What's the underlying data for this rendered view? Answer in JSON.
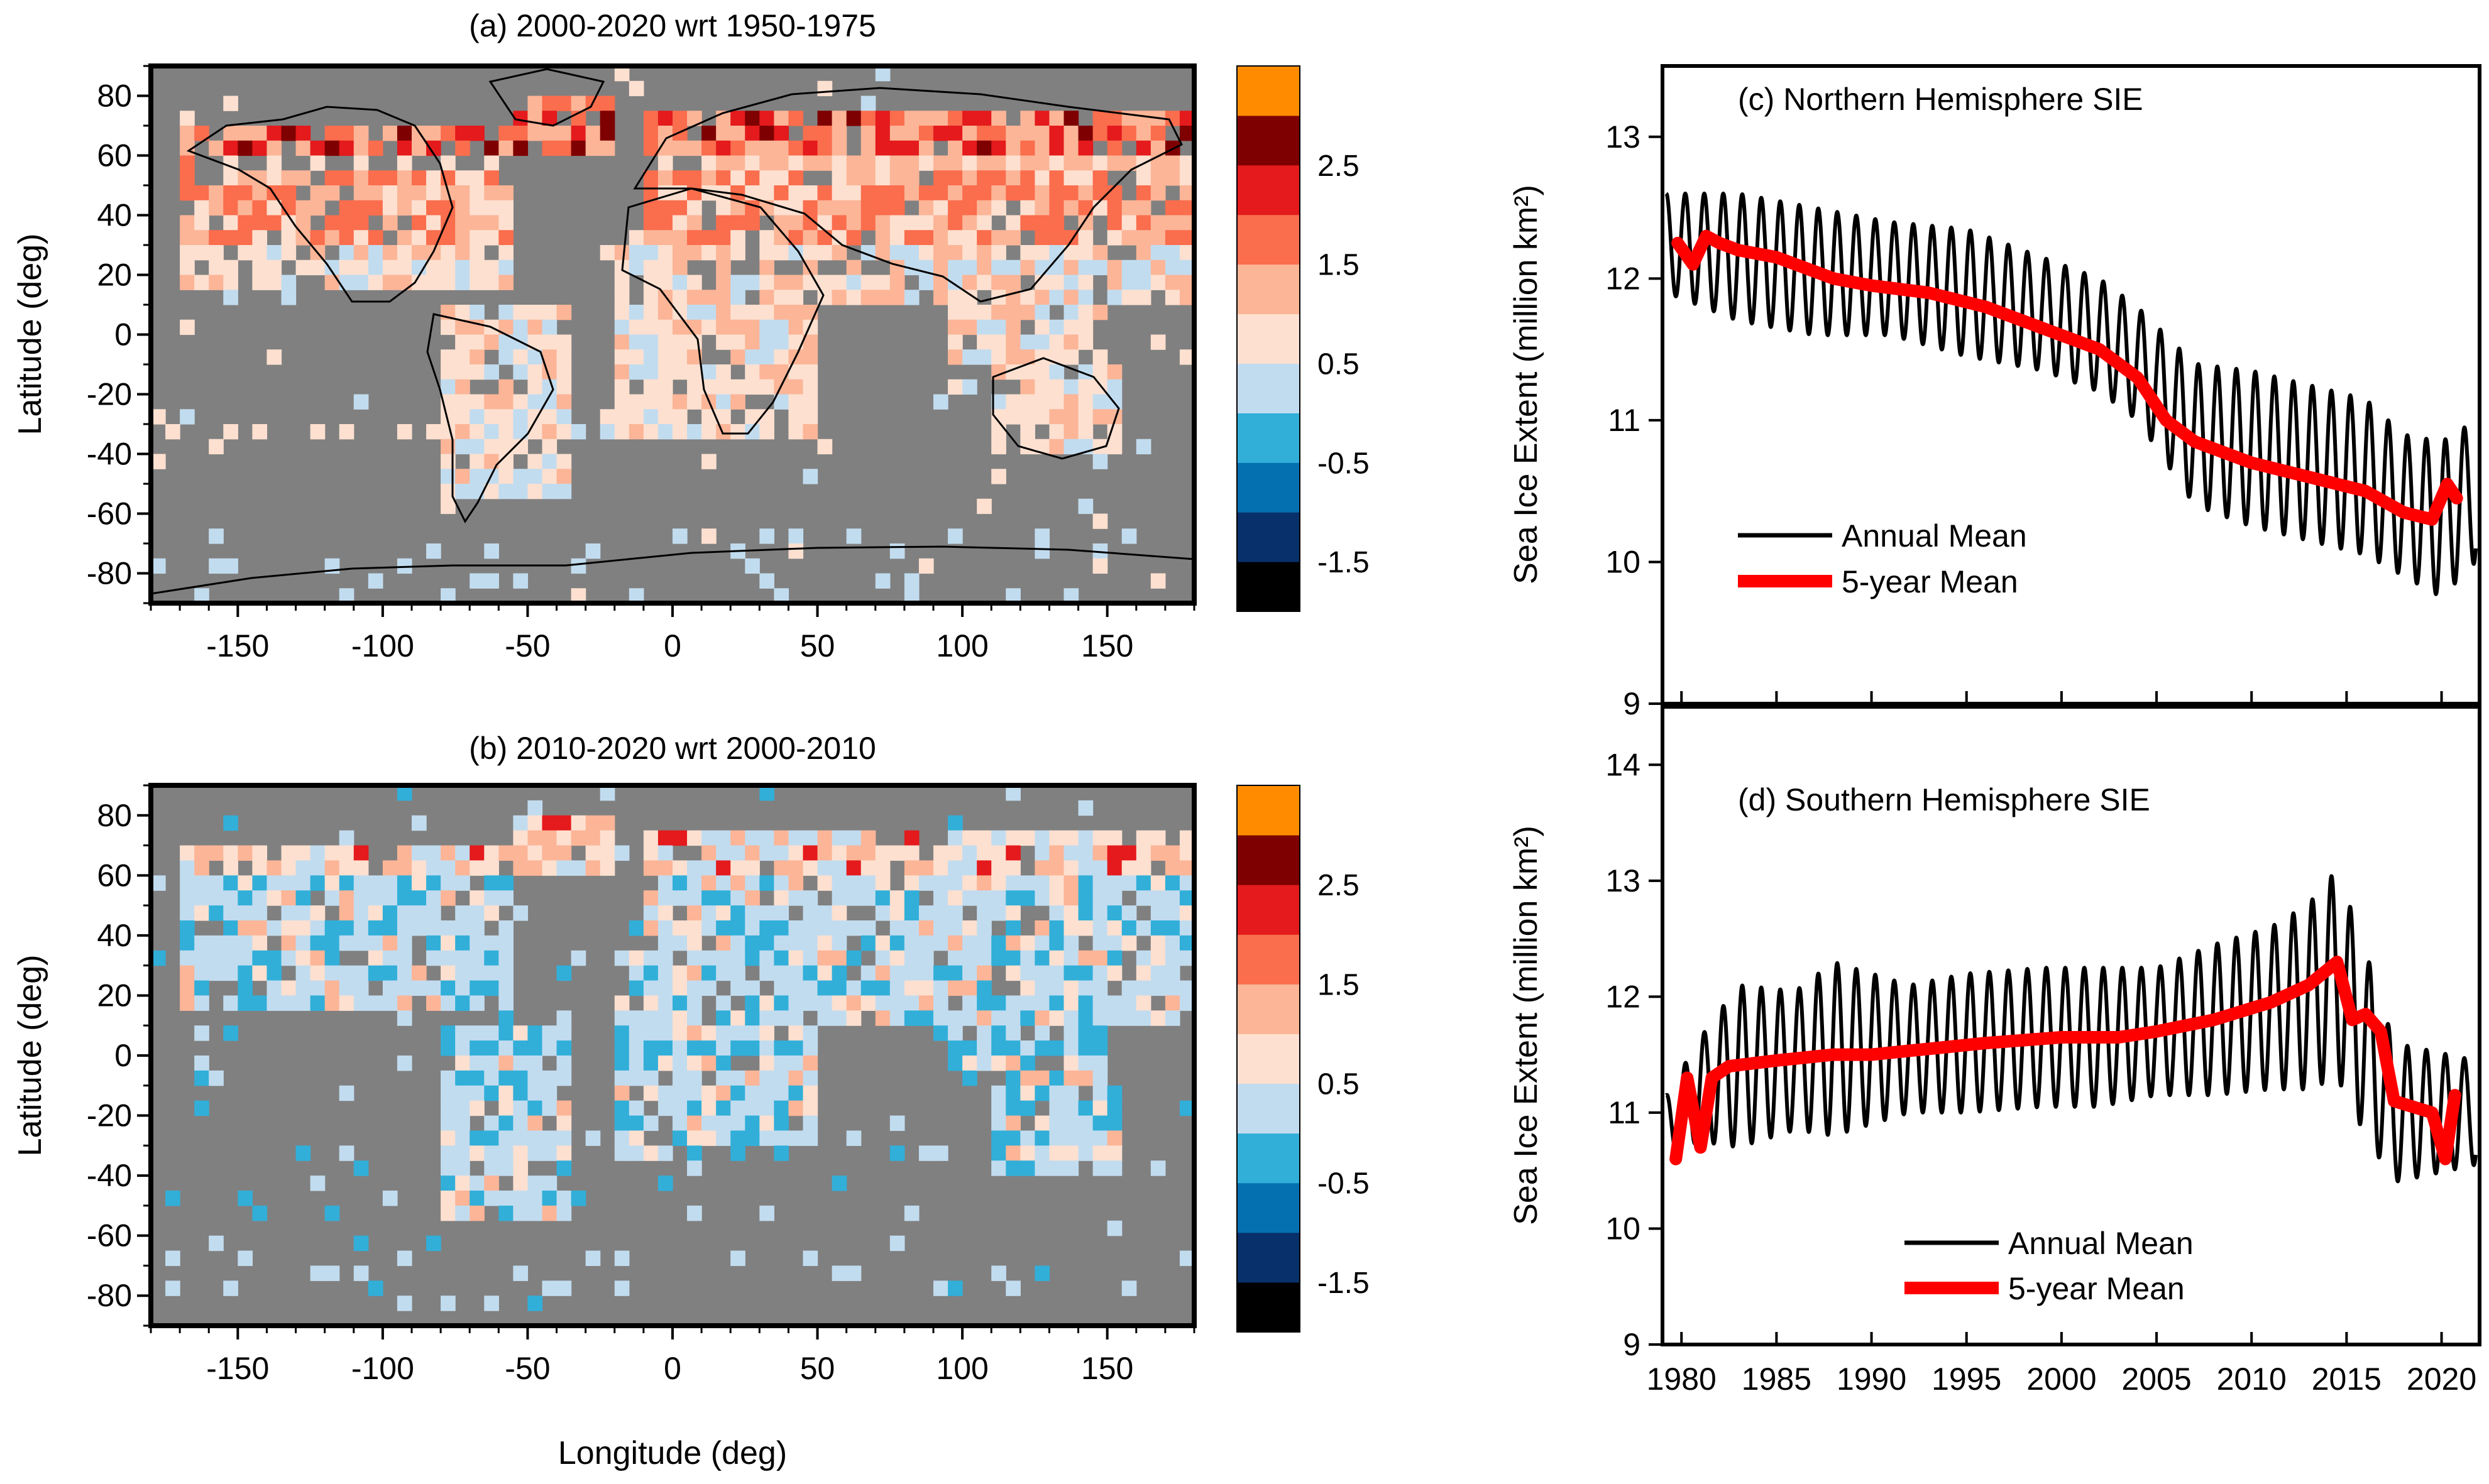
{
  "chart_data": [
    {
      "type": "heatmap",
      "panel": "a",
      "title": "(a)   2000-2020 wrt 1950-1975",
      "xlabel": "",
      "ylabel": "Latitude (deg)",
      "xlim": [
        -180,
        180
      ],
      "ylim": [
        -90,
        90
      ],
      "xticks": [
        "-150",
        "-100",
        "-50",
        "0",
        "50",
        "100",
        "150"
      ],
      "yticks": [
        "80",
        "60",
        "40",
        "20",
        "0",
        "-20",
        "-40",
        "-60",
        "-80"
      ],
      "background": "#808080",
      "colorbar": {
        "colors": [
          "#000000",
          "#08306b",
          "#0570b0",
          "#31afd9",
          "#c2dcef",
          "#fde0d0",
          "#fcb597",
          "#fa6d4d",
          "#e41a1c",
          "#7f0000",
          "#ff8c00"
        ],
        "labels": [
          "-1.5",
          "-0.5",
          "0.5",
          "1.5",
          "2.5"
        ]
      }
    },
    {
      "type": "heatmap",
      "panel": "b",
      "title": "(b)   2010-2020 wrt 2000-2010",
      "xlabel": "Longitude (deg)",
      "ylabel": "Latitude (deg)",
      "xlim": [
        -180,
        180
      ],
      "ylim": [
        -90,
        90
      ],
      "xticks": [
        "-150",
        "-100",
        "-50",
        "0",
        "50",
        "100",
        "150"
      ],
      "yticks": [
        "80",
        "60",
        "40",
        "20",
        "0",
        "-20",
        "-40",
        "-60",
        "-80"
      ],
      "background": "#808080",
      "colorbar": {
        "colors": [
          "#000000",
          "#08306b",
          "#0570b0",
          "#31afd9",
          "#c2dcef",
          "#fde0d0",
          "#fcb597",
          "#fa6d4d",
          "#e41a1c",
          "#7f0000",
          "#ff8c00"
        ],
        "labels": [
          "-1.5",
          "-0.5",
          "0.5",
          "1.5",
          "2.5"
        ]
      }
    },
    {
      "type": "line",
      "panel": "c",
      "title": "(c) Northern Hemisphere SIE",
      "xlabel": "",
      "ylabel": "Sea Ice Extent (million km²)",
      "xlim": [
        1979,
        2022
      ],
      "ylim": [
        9,
        13.5
      ],
      "yticks": [
        9,
        10,
        11,
        12,
        13
      ],
      "xticks": [
        1980,
        1985,
        1990,
        1995,
        2000,
        2005,
        2010,
        2015,
        2020
      ],
      "legend": "center-left",
      "series": [
        {
          "name": "Annual Mean",
          "color": "#000000",
          "style": "oscillating",
          "x": [
            1979.2,
            1983,
            1987,
            1991,
            1995,
            1999,
            2002,
            2004,
            2007,
            2010,
            2013,
            2016,
            2018,
            2020,
            2021.8
          ],
          "values": [
            12.25,
            12.15,
            12.05,
            12.0,
            11.9,
            11.75,
            11.6,
            11.4,
            10.9,
            10.8,
            10.7,
            10.6,
            10.4,
            10.3,
            10.5
          ],
          "amplitude": [
            0.35,
            0.45,
            0.45,
            0.4,
            0.45,
            0.4,
            0.4,
            0.4,
            0.5,
            0.55,
            0.55,
            0.55,
            0.5,
            0.55,
            0.5
          ]
        },
        {
          "name": "5-year Mean",
          "color": "#ff0000",
          "x": [
            1979.8,
            1980.6,
            1981.3,
            1982,
            1983,
            1985,
            1988,
            1990,
            1993,
            1996,
            1998,
            2000,
            2002,
            2004,
            2005.5,
            2007,
            2010,
            2013,
            2016,
            2018,
            2019.5,
            2020.3,
            2020.8
          ],
          "values": [
            12.25,
            12.1,
            12.3,
            12.25,
            12.2,
            12.15,
            12.0,
            11.95,
            11.9,
            11.8,
            11.7,
            11.6,
            11.5,
            11.3,
            11.0,
            10.85,
            10.7,
            10.6,
            10.5,
            10.35,
            10.3,
            10.55,
            10.45
          ]
        }
      ]
    },
    {
      "type": "line",
      "panel": "d",
      "title": "(d) Southern Hemisphere SIE",
      "xlabel": "",
      "ylabel": "Sea Ice Extent (million km²)",
      "xlim": [
        1979,
        2022
      ],
      "ylim": [
        9,
        14.5
      ],
      "yticks": [
        9,
        10,
        11,
        12,
        13,
        14
      ],
      "xticks": [
        1980,
        1985,
        1990,
        1995,
        2000,
        2005,
        2010,
        2015,
        2020
      ],
      "legend": "bottom-center",
      "series": [
        {
          "name": "Annual Mean",
          "color": "#000000",
          "style": "oscillating",
          "x": [
            1979.2,
            1981,
            1983,
            1986,
            1988,
            1992,
            1995,
            1999,
            2002,
            2005,
            2008,
            2011,
            2013,
            2014.5,
            2016,
            2017.5,
            2019,
            2021.8
          ],
          "values": [
            10.9,
            11.2,
            11.4,
            11.45,
            11.55,
            11.55,
            11.6,
            11.65,
            11.65,
            11.7,
            11.8,
            11.9,
            12.0,
            12.2,
            11.6,
            11.0,
            11.0,
            11.0
          ],
          "amplitude": [
            0.25,
            0.45,
            0.7,
            0.6,
            0.75,
            0.55,
            0.6,
            0.6,
            0.6,
            0.55,
            0.65,
            0.7,
            0.8,
            0.9,
            0.8,
            0.6,
            0.55,
            0.45
          ]
        },
        {
          "name": "5-year Mean",
          "color": "#ff0000",
          "x": [
            1979.7,
            1980.3,
            1981,
            1981.6,
            1982.5,
            1985,
            1988,
            1990,
            1993,
            1996,
            2000,
            2003,
            2005,
            2008,
            2011,
            2013,
            2014.5,
            2015.3,
            2016,
            2016.8,
            2017.5,
            2018.5,
            2019.5,
            2020.2,
            2020.7
          ],
          "values": [
            10.6,
            11.3,
            10.7,
            11.3,
            11.4,
            11.45,
            11.5,
            11.5,
            11.55,
            11.6,
            11.65,
            11.65,
            11.7,
            11.8,
            11.95,
            12.1,
            12.3,
            11.8,
            11.85,
            11.7,
            11.1,
            11.05,
            11.0,
            10.6,
            11.15
          ]
        }
      ]
    }
  ]
}
